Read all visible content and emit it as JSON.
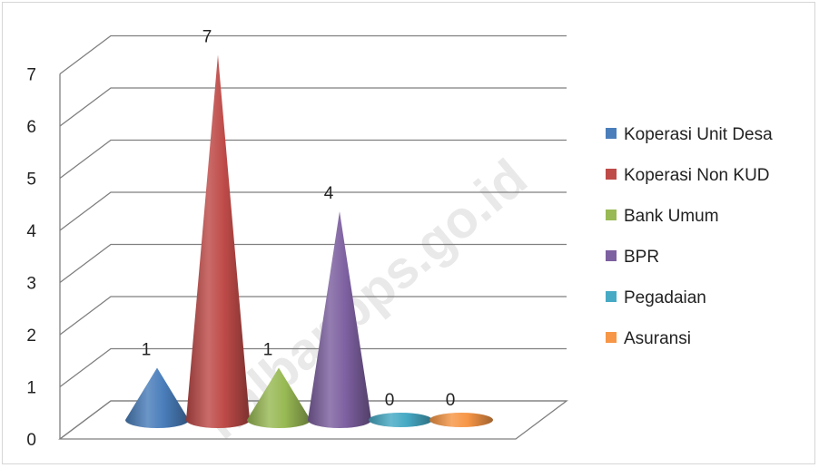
{
  "chart_data": {
    "type": "bar",
    "style": "3d-cone",
    "categories": [
      "Koperasi Unit Desa",
      "Koperasi Non KUD",
      "Bank Umum",
      "BPR",
      "Pegadaian",
      "Asuransi"
    ],
    "values": [
      1,
      7,
      1,
      4,
      0,
      0
    ],
    "data_labels": [
      "1",
      "7",
      "1",
      "4",
      "0",
      "0"
    ],
    "colors": [
      "#4a7ebb",
      "#be4b48",
      "#98b954",
      "#7d60a0",
      "#46aac5",
      "#f79646"
    ],
    "ylim": [
      0,
      7
    ],
    "yticks": [
      "0",
      "1",
      "2",
      "3",
      "4",
      "5",
      "6",
      "7"
    ],
    "grid": true,
    "legend_position": "right"
  },
  "watermark": "kalbar.bps.go.id"
}
